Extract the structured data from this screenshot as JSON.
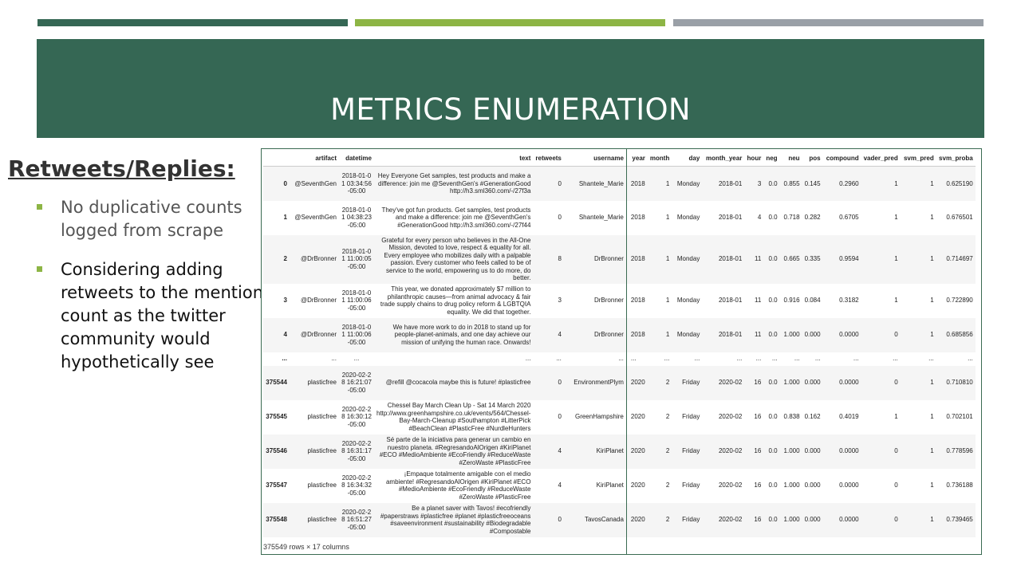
{
  "colors": {
    "accent_dark_green": "#356754",
    "accent_light_green": "#8db545",
    "accent_gray": "#9aa0a7",
    "banner": "#356754",
    "bullet": "#8db545",
    "frame_border": "#3a6b52"
  },
  "slide": {
    "title": "METRICS ENUMERATION",
    "subheading": "Retweets/Replies:",
    "bullets": [
      "No duplicative counts logged from scrape",
      "Considering adding retweets to the mention count as the twitter community would hypothetically see"
    ]
  },
  "dataframe": {
    "columns": [
      "",
      "artifact",
      "datetime",
      "text",
      "retweets",
      "username",
      "year",
      "month",
      "day",
      "month_year",
      "hour",
      "neg",
      "neu",
      "pos",
      "compound",
      "vader_pred",
      "svm_pred",
      "svm_proba"
    ],
    "rows": [
      [
        "0",
        "@SeventhGen",
        "2018-01-01 03:34:56-05:00",
        "Hey Everyone Get samples, test products and make a difference: join me @SeventhGen's #GenerationGood http://h3.sml360.com/-/27f3a",
        "0",
        "Shantele_Marie",
        "2018",
        "1",
        "Monday",
        "2018-01",
        "3",
        "0.0",
        "0.855",
        "0.145",
        "0.2960",
        "1",
        "1",
        "0.625190"
      ],
      [
        "1",
        "@SeventhGen",
        "2018-01-01 04:38:23-05:00",
        "They've got fun products. Get samples, test products and make a difference: join me @SeventhGen's #GenerationGood http://h3.sml360.com/-/27f44",
        "0",
        "Shantele_Marie",
        "2018",
        "1",
        "Monday",
        "2018-01",
        "4",
        "0.0",
        "0.718",
        "0.282",
        "0.6705",
        "1",
        "1",
        "0.676501"
      ],
      [
        "2",
        "@DrBronner",
        "2018-01-01 11:00:05-05:00",
        "Grateful for every person who believes in the All-One Mission, devoted to love, respect & equality for all. Every employee who mobilizes daily with a palpable passion. Every customer who feels called to be of service to the world, empowering us to do more, do better.",
        "8",
        "DrBronner",
        "2018",
        "1",
        "Monday",
        "2018-01",
        "11",
        "0.0",
        "0.665",
        "0.335",
        "0.9594",
        "1",
        "1",
        "0.714697"
      ],
      [
        "3",
        "@DrBronner",
        "2018-01-01 11:00:06-05:00",
        "This year, we donated approximately $7 million to philanthropic causes—from animal advocacy & fair trade supply chains to drug policy reform & LGBTQIA equality. We did that together.",
        "3",
        "DrBronner",
        "2018",
        "1",
        "Monday",
        "2018-01",
        "11",
        "0.0",
        "0.916",
        "0.084",
        "0.3182",
        "1",
        "1",
        "0.722890"
      ],
      [
        "4",
        "@DrBronner",
        "2018-01-01 11:00:06-05:00",
        "We have more work to do in 2018 to stand up for people-planet-animals, and one day achieve our mission of unifying the human race. Onwards!",
        "4",
        "DrBronner",
        "2018",
        "1",
        "Monday",
        "2018-01",
        "11",
        "0.0",
        "1.000",
        "0.000",
        "0.0000",
        "0",
        "1",
        "0.685856"
      ],
      [
        "...",
        "...",
        "...",
        "...",
        "...",
        "...",
        "...",
        "...",
        "...",
        "...",
        "...",
        "...",
        "...",
        "...",
        "...",
        "...",
        "...",
        "..."
      ],
      [
        "375544",
        "plasticfree",
        "2020-02-28 16:21:07-05:00",
        "@refill @cocacola maybe this is future! #plasticfree",
        "0",
        "EnvironmentPlym",
        "2020",
        "2",
        "Friday",
        "2020-02",
        "16",
        "0.0",
        "1.000",
        "0.000",
        "0.0000",
        "0",
        "1",
        "0.710810"
      ],
      [
        "375545",
        "plasticfree",
        "2020-02-28 16:30:12-05:00",
        "Chessel Bay March Clean Up - Sat 14 March 2020 http://www.greenhampshire.co.uk/events/564/Chessel-Bay-March-Cleanup #Southampton #LitterPick #BeachClean #PlasticFree #NurdleHunters",
        "0",
        "GreenHampshire",
        "2020",
        "2",
        "Friday",
        "2020-02",
        "16",
        "0.0",
        "0.838",
        "0.162",
        "0.4019",
        "1",
        "1",
        "0.702101"
      ],
      [
        "375546",
        "plasticfree",
        "2020-02-28 16:31:17-05:00",
        "Sé parte de la iniciativa para generar un cambio en nuestro planeta. #RegresandoAlOrigen #KiriPlanet #ECO #MedioAmbiente #EcoFriendly #ReduceWaste #ZeroWaste #PlasticFree",
        "4",
        "KiriPlanet",
        "2020",
        "2",
        "Friday",
        "2020-02",
        "16",
        "0.0",
        "1.000",
        "0.000",
        "0.0000",
        "0",
        "1",
        "0.778596"
      ],
      [
        "375547",
        "plasticfree",
        "2020-02-28 16:34:32-05:00",
        "¡Empaque totalmente amigable con el medio ambiente! #RegresandoAlOrigen #KiriPlanet #ECO #MedioAmbiente #EcoFriendly #ReduceWaste #ZeroWaste #PlasticFree",
        "4",
        "KiriPlanet",
        "2020",
        "2",
        "Friday",
        "2020-02",
        "16",
        "0.0",
        "1.000",
        "0.000",
        "0.0000",
        "0",
        "1",
        "0.736188"
      ],
      [
        "375548",
        "plasticfree",
        "2020-02-28 16:51:27-05:00",
        "Be a planet saver with Tavos! #ecofriendly #paperstraws #plasticfree #planet #plasticfreeoceans #saveenvironment #sustainability #Biodegradable #Compostable",
        "0",
        "TavosCanada",
        "2020",
        "2",
        "Friday",
        "2020-02",
        "16",
        "0.0",
        "1.000",
        "0.000",
        "0.0000",
        "0",
        "1",
        "0.739465"
      ]
    ],
    "footer": "375549 rows × 17 columns"
  }
}
